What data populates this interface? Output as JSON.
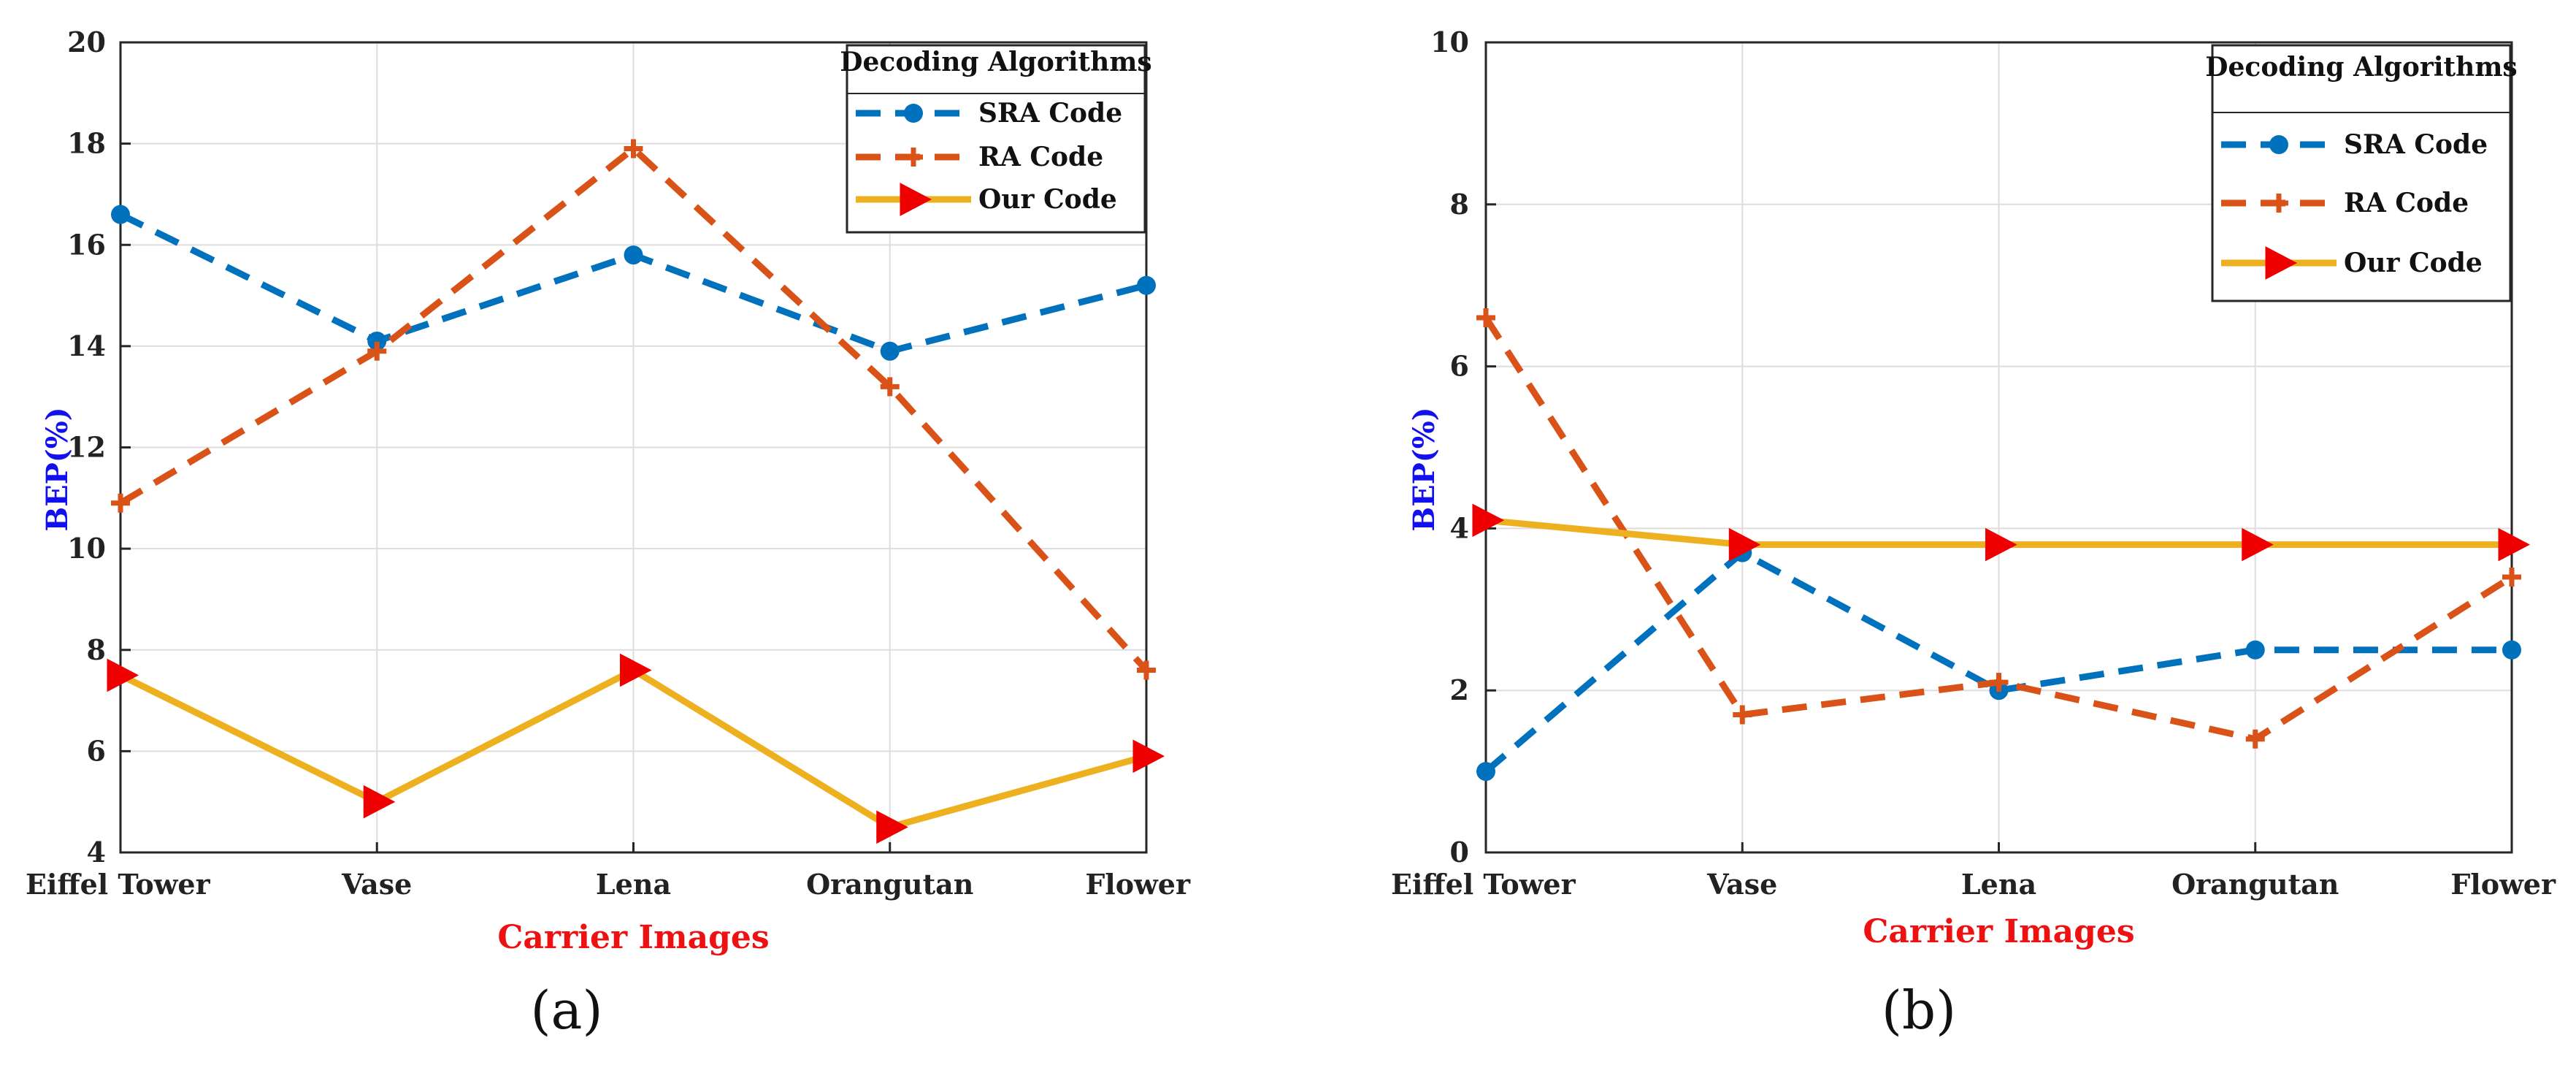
{
  "chart_data": [
    {
      "type": "line",
      "panel_label": "(a)",
      "xlabel": "Carrier Images",
      "ylabel": "BEP(%)",
      "categories": [
        "Eiffel Tower",
        "Vase",
        "Lena",
        "Orangutan",
        "Flower"
      ],
      "ylim": [
        4,
        20
      ],
      "yticks": [
        4,
        6,
        8,
        10,
        12,
        14,
        16,
        18,
        20
      ],
      "grid": true,
      "legend_title": "Decoding Algorithms",
      "legend_position": "top-right",
      "series": [
        {
          "name": "SRA Code",
          "values": [
            16.6,
            14.1,
            15.8,
            13.9,
            15.2
          ],
          "color": "#0072BD",
          "style": "dashed",
          "marker": "circle"
        },
        {
          "name": "RA Code",
          "values": [
            10.9,
            13.9,
            17.9,
            13.2,
            7.6
          ],
          "color": "#D95319",
          "style": "dashed",
          "marker": "plus"
        },
        {
          "name": "Our Code",
          "values": [
            7.5,
            5.0,
            7.6,
            4.5,
            5.9
          ],
          "color": "#EDB120",
          "style": "solid",
          "marker": "triangle-right"
        }
      ]
    },
    {
      "type": "line",
      "panel_label": "(b)",
      "xlabel": "Carrier Images",
      "ylabel": "BEP(%)",
      "categories": [
        "Eiffel Tower",
        "Vase",
        "Lena",
        "Orangutan",
        "Flower"
      ],
      "ylim": [
        0,
        10
      ],
      "yticks": [
        0,
        2,
        4,
        6,
        8,
        10
      ],
      "grid": true,
      "legend_title": "Decoding Algorithms",
      "legend_position": "top-right",
      "series": [
        {
          "name": "SRA Code",
          "values": [
            1.0,
            3.7,
            2.0,
            2.5,
            2.5
          ],
          "color": "#0072BD",
          "style": "dashed",
          "marker": "circle"
        },
        {
          "name": "RA Code",
          "values": [
            6.6,
            1.7,
            2.1,
            1.4,
            3.4
          ],
          "color": "#D95319",
          "style": "dashed",
          "marker": "plus"
        },
        {
          "name": "Our Code",
          "values": [
            4.1,
            3.8,
            3.8,
            3.8,
            3.8
          ],
          "color": "#EDB120",
          "style": "solid",
          "marker": "triangle-right"
        }
      ]
    }
  ]
}
